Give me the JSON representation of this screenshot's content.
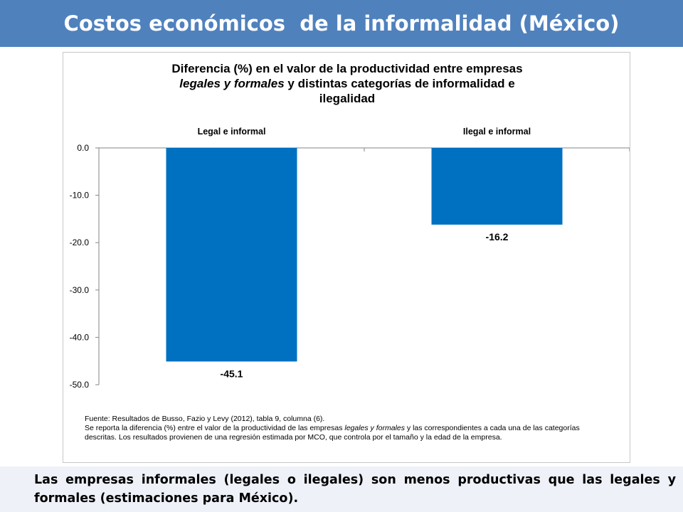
{
  "slide": {
    "title": "Costos económicos  de la informalidad (México)",
    "footer_text": "Las empresas informales (legales o ilegales) son menos productivas que las legales y formales (estimaciones para México)."
  },
  "chart_data": {
    "type": "bar",
    "title_parts": {
      "line1": "Diferencia (%) en el valor de la productividad entre empresas",
      "line2_italic": "legales y formales",
      "line2_rest": " y distintas categorías de informalidad e",
      "line3": "ilegalidad"
    },
    "categories": [
      "Legal e informal",
      "Ilegal e informal"
    ],
    "values": [
      -45.1,
      -16.2
    ],
    "data_labels": [
      "-45.1",
      "-16.2"
    ],
    "ylim": [
      -50,
      0
    ],
    "yticks": [
      "0.0",
      "-10.0",
      "-20.0",
      "-30.0",
      "-40.0",
      "-50.0"
    ],
    "category_axis_position": "top",
    "bar_color": "#0070c0",
    "grid": false,
    "legend": "none",
    "source_note": {
      "line1": "Fuente: Resultados de Busso, Fazio y Levy (2012), tabla 9, columna (6).",
      "line2_pre": "Se reporta la diferencia (%) entre el valor de la productividad de las empresas ",
      "line2_italic": "legales y formales",
      "line2_post": " y las correspondientes a cada una de las categorías descritas. Los resultados provienen de una regresión estimada por MCO, que controla por el tamaño y la edad de la empresa."
    }
  },
  "colors": {
    "header_bg": "#4f81bd",
    "footer_bg": "#eef1f8",
    "bar": "#0070c0"
  }
}
